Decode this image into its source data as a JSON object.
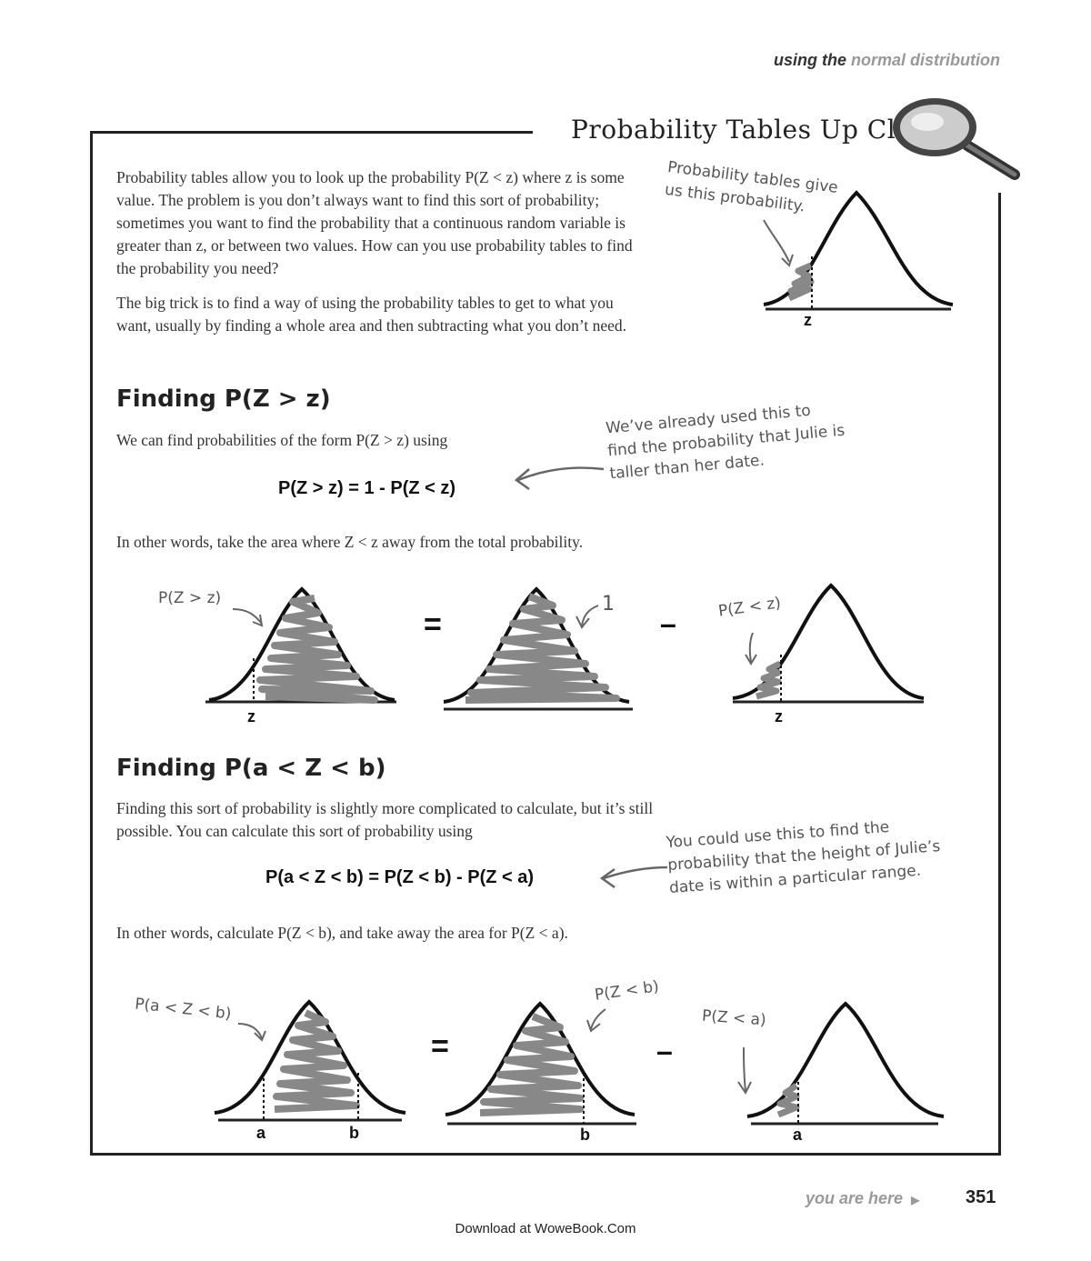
{
  "header": {
    "prefix": "using the",
    "highlight": "normal distribution"
  },
  "box": {
    "title": "Probability Tables Up Close",
    "intro_1": "Probability tables allow you to look up the probability P(Z < z) where z is some value. The problem is you don’t always want to find this sort of probability; sometimes you want to find the probability that a continuous random variable is greater than z, or between two values. How can you use probability tables to find the probability you need?",
    "intro_2": "The big trick is to find a way of using the probability tables to get to what you want, usually by finding a whole area and then subtracting what you don’t need.",
    "top_note": "Probability tables give us this probability.",
    "top_z": "z"
  },
  "section1": {
    "heading": "Finding P(Z > z)",
    "text": "We can find probabilities of the form P(Z > z) using",
    "formula": "P(Z > z) = 1 - P(Z < z)",
    "note": "We’ve already used this to find the probability that Julie is taller than her date.",
    "after": "In other words, take the area where Z < z away from the total probability.",
    "label_left": "P(Z > z)",
    "label_mid": "1",
    "label_right": "P(Z < z)",
    "equals": "=",
    "minus": "–",
    "z1": "z",
    "z2": "z"
  },
  "section2": {
    "heading": "Finding P(a < Z < b)",
    "text": "Finding this sort of probability is slightly more complicated to calculate, but it’s still possible. You can calculate this sort of probability using",
    "formula": "P(a < Z < b) = P(Z < b) - P(Z < a)",
    "note": "You could use this to find the probability that the height of Julie’s date is within a particular range.",
    "after": "In other words, calculate P(Z < b), and take away the area for P(Z < a).",
    "label_left": "P(a < Z < b)",
    "label_mid": "P(Z < b)",
    "label_right": "P(Z < a)",
    "equals": "=",
    "minus": "–",
    "a1": "a",
    "b1": "b",
    "b2": "b",
    "a2": "a"
  },
  "footer": {
    "you_are_here": "you are here",
    "page": "351",
    "download": "Download at WoweBook.Com"
  }
}
